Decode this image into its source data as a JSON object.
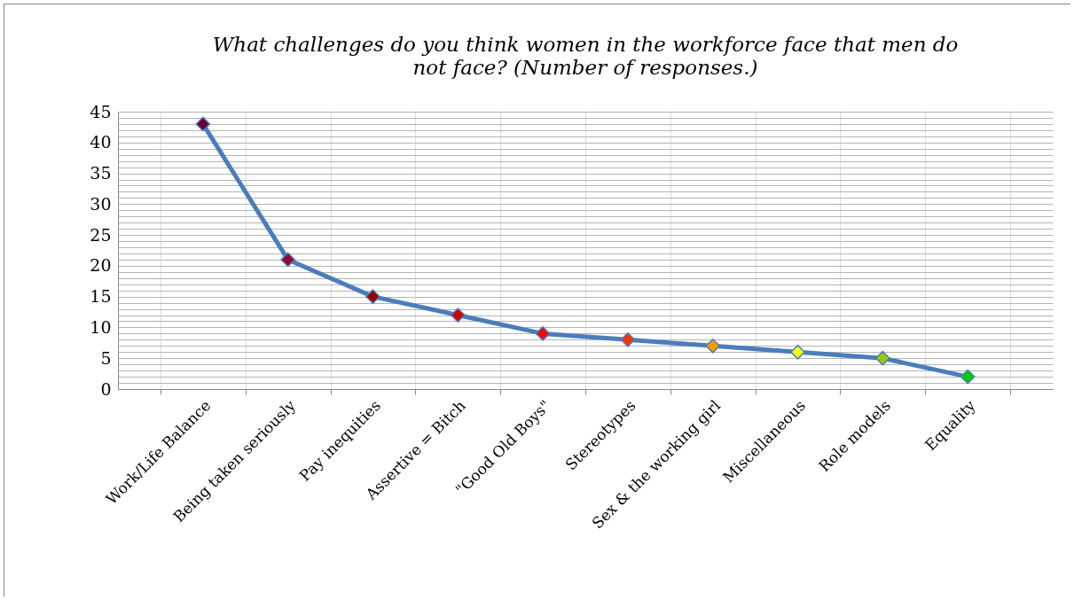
{
  "chart_data": {
    "type": "line",
    "title": "What  challenges do you think women in the workforce face that men do\nnot face?  (Number of responses.)",
    "categories": [
      "Work/Life Balance",
      "Being taken seriously",
      "Pay inequities",
      "Assertive = Bitch",
      "\"Good Old Boys\"",
      "Stereotypes",
      "Sex & the working girl",
      "Miscellaneous",
      "Role models",
      "Equality"
    ],
    "series": [
      {
        "color": "#4a7ebb",
        "values": [
          43,
          21,
          15,
          12,
          9,
          8,
          7,
          6,
          5,
          2
        ],
        "colors": [
          "#660033",
          "#990033",
          "#990000",
          "#cc0000",
          "#ff0000",
          "#ff3300",
          "#ff9900",
          "#ffff00",
          "#99cc00",
          "#00cc00"
        ]
      }
    ],
    "ylim": [
      0,
      45
    ],
    "yticks": [
      0,
      {
        "value": 1,
        "label": null
      },
      {
        "value": 2,
        "label": null
      },
      {
        "value": 3,
        "label": null
      },
      {
        "value": 4,
        "label": null
      },
      5,
      {
        "value": 6,
        "label": null
      },
      {
        "value": 7,
        "label": null
      },
      {
        "value": 8,
        "label": null
      },
      {
        "value": 9,
        "label": null
      },
      10,
      {
        "value": 11,
        "label": null
      },
      {
        "value": 12,
        "label": null
      },
      {
        "value": 13,
        "label": null
      },
      {
        "value": 14,
        "label": null
      },
      15,
      {
        "value": 16,
        "label": null
      },
      {
        "value": 17,
        "label": null
      },
      {
        "value": 18,
        "label": null
      },
      {
        "value": 19,
        "label": null
      },
      20,
      {
        "value": 21,
        "label": null
      },
      {
        "value": 22,
        "label": null
      },
      {
        "value": 23,
        "label": null
      },
      {
        "value": 24,
        "label": null
      },
      25,
      {
        "value": 26,
        "label": null
      },
      {
        "value": 27,
        "label": null
      },
      {
        "value": 28,
        "label": null
      },
      {
        "value": 29,
        "label": null
      },
      30,
      {
        "value": 31,
        "label": null
      },
      {
        "value": 32,
        "label": null
      },
      {
        "value": 33,
        "label": null
      },
      {
        "value": 34,
        "label": null
      },
      35,
      {
        "value": 36,
        "label": null
      },
      {
        "value": 37,
        "label": null
      },
      {
        "value": 38,
        "label": null
      },
      {
        "value": 39,
        "label": null
      },
      40,
      {
        "value": 41,
        "label": null
      },
      {
        "value": 42,
        "label": null
      },
      {
        "value": 43,
        "label": null
      },
      {
        "value": 44,
        "label": null
      },
      45
    ],
    "grid": true,
    "marker": "diamond",
    "line_style": "solid"
  }
}
